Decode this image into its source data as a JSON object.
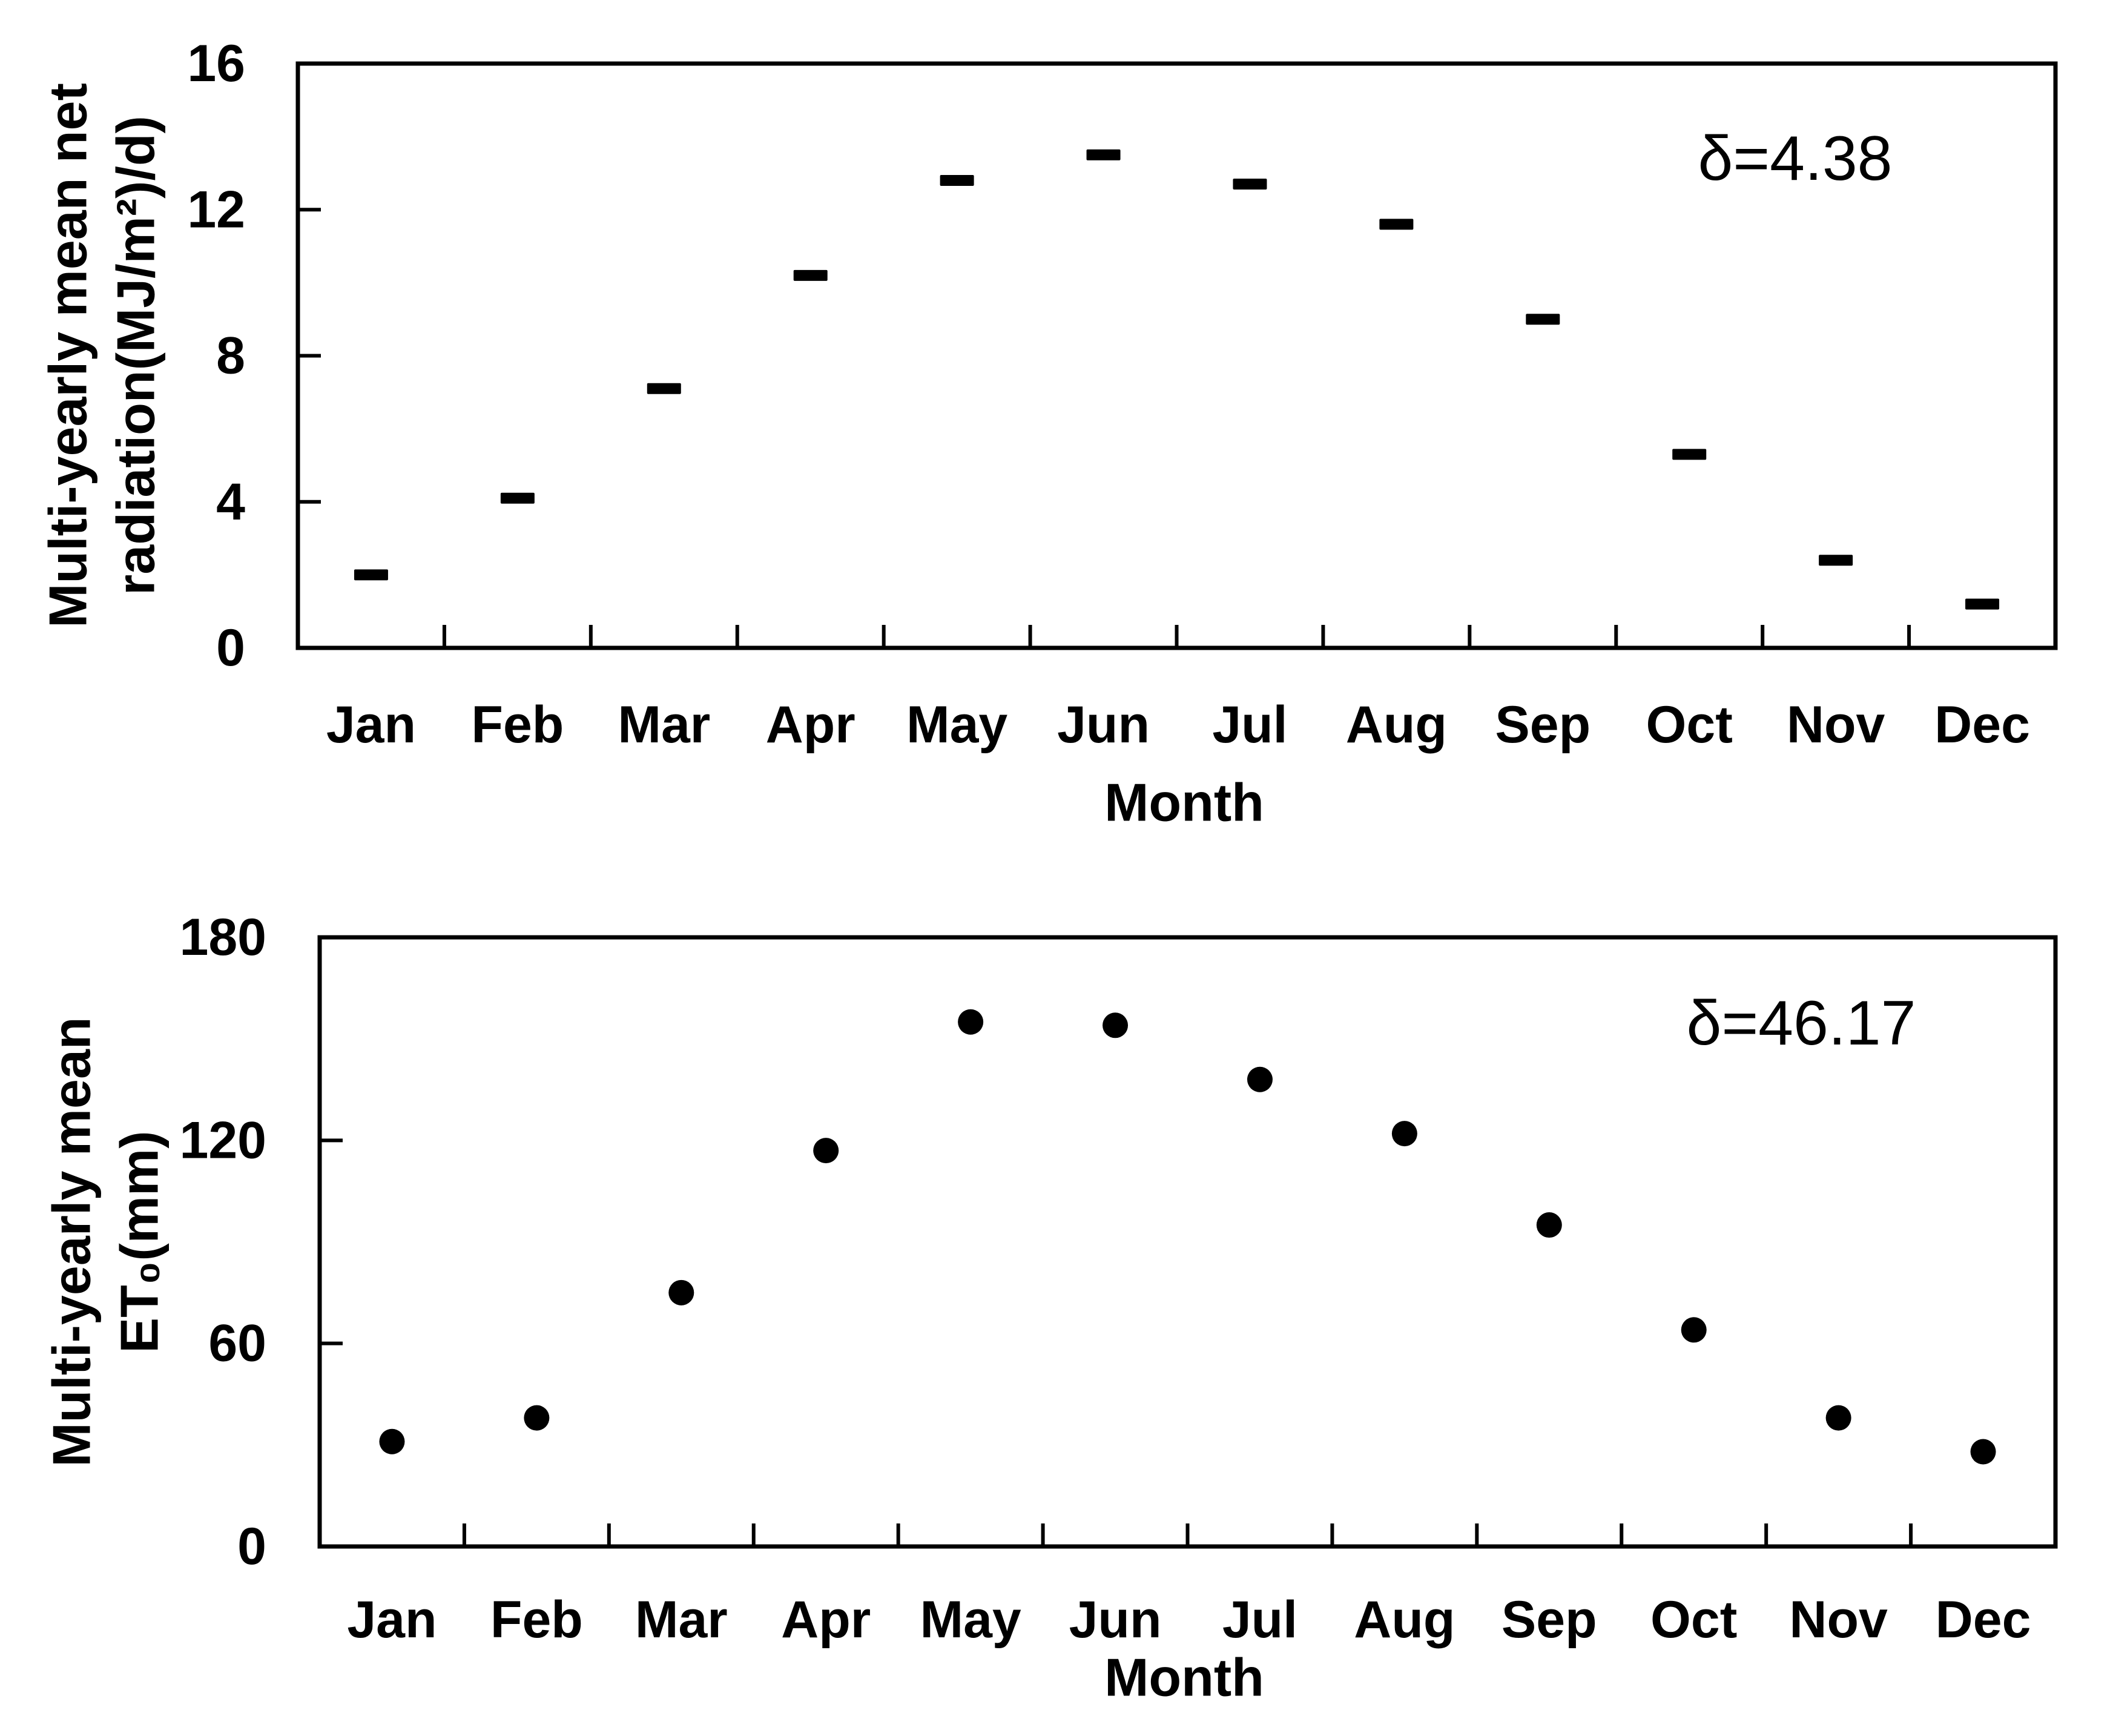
{
  "figure": {
    "background": "#ffffff",
    "ink": "#000000"
  },
  "chart_data": [
    {
      "type": "scatter",
      "marker": "dash",
      "title": "",
      "ylabel_lines": [
        "Multi-yearly mean net",
        "radiation(MJ/m²)/d)"
      ],
      "xlabel": "Month",
      "categories": [
        "Jan",
        "Feb",
        "Mar",
        "Apr",
        "May",
        "Jun",
        "Jul",
        "Aug",
        "Sep",
        "Oct",
        "Nov",
        "Dec"
      ],
      "values": [
        2.0,
        4.1,
        7.1,
        10.2,
        12.8,
        13.5,
        12.7,
        11.6,
        9.0,
        5.3,
        2.4,
        1.2
      ],
      "ylim": [
        0,
        16
      ],
      "yticks": [
        0,
        4,
        8,
        12,
        16
      ],
      "annotation": "δ=4.38",
      "grid": false,
      "legend": "none"
    },
    {
      "type": "scatter",
      "marker": "circle",
      "title": "",
      "ylabel_lines": [
        "Multi-yearly mean",
        "ET₀(mm)"
      ],
      "xlabel": "Month",
      "categories": [
        "Jan",
        "Feb",
        "Mar",
        "Apr",
        "May",
        "Jun",
        "Jul",
        "Aug",
        "Sep",
        "Oct",
        "Nov",
        "Dec"
      ],
      "values": [
        31,
        38,
        75,
        117,
        155,
        154,
        138,
        122,
        95,
        64,
        38,
        28
      ],
      "ylim": [
        0,
        180
      ],
      "yticks": [
        0,
        60,
        120,
        180
      ],
      "annotation": "δ=46.17",
      "grid": false,
      "legend": "none"
    }
  ]
}
